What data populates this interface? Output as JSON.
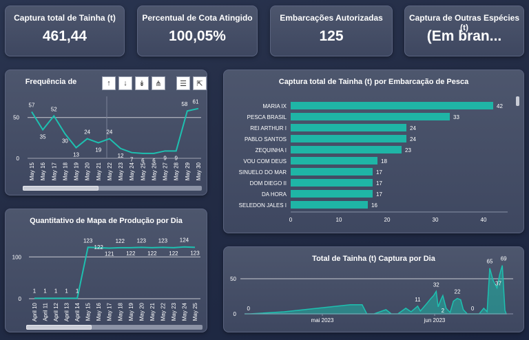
{
  "kpis": [
    {
      "title": "Captura total de Tainha (t)",
      "value": "461,44"
    },
    {
      "title": "Percentual de Cota Atingido",
      "value": "100,05%"
    },
    {
      "title": "Embarcações Autorizadas",
      "value": "125"
    },
    {
      "title": "Captura de Outras Espécies (t)",
      "value": "(Em bran..."
    }
  ],
  "toolbar": {
    "icons": [
      "arrow-up-icon",
      "arrow-down-icon",
      "double-arrow-down-icon",
      "expand-hierarchy-icon",
      "filter-icon",
      "focus-mode-icon"
    ]
  },
  "colors": {
    "accent": "#1fb5a6",
    "line": "#1ec0b0"
  },
  "chart_data": [
    {
      "type": "line",
      "title": "Frequência de",
      "categories": [
        "May 15",
        "May 16",
        "May 17",
        "May 18",
        "May 19",
        "May 20",
        "May 21",
        "May 22",
        "May 23",
        "May 24",
        "May 25",
        "May 26",
        "May 27",
        "May 28",
        "May 29",
        "May 30"
      ],
      "values": [
        57,
        35,
        52,
        30,
        13,
        24,
        19,
        24,
        12,
        7,
        6,
        6,
        9,
        9,
        58,
        61
      ],
      "y_ticks": [
        "0",
        "50"
      ],
      "ylim": [
        0,
        70
      ]
    },
    {
      "type": "bar",
      "orientation": "horizontal",
      "title": "Captura total de Tainha (t) por Embarcação de Pesca",
      "categories": [
        "MARIA IX",
        "PESCA BRASIL",
        "REI ARTHUR I",
        "PABLO SANTOS",
        "ZEQUINHA I",
        "VOU COM DEUS",
        "SINUELO DO MAR",
        "DOM DIEGO II",
        "DA HORA",
        "SELEDON JALES I"
      ],
      "values": [
        42,
        33,
        24,
        24,
        23,
        18,
        17,
        17,
        17,
        16
      ],
      "x_ticks": [
        "0",
        "10",
        "20",
        "30",
        "40"
      ],
      "xlim": [
        0,
        45
      ]
    },
    {
      "type": "line",
      "title": "Quantitativo de Mapa de Produção por Dia",
      "categories": [
        "April 10",
        "April 11",
        "April 12",
        "April 13",
        "April 14",
        "May 15",
        "May 16",
        "May 17",
        "May 18",
        "May 19",
        "May 20",
        "May 21",
        "May 22",
        "May 23",
        "May 24",
        "May 25"
      ],
      "values": [
        1,
        1,
        1,
        1,
        1,
        123,
        122,
        121,
        122,
        122,
        123,
        122,
        123,
        122,
        124,
        123
      ],
      "y_ticks": [
        "0",
        "100"
      ],
      "ylim": [
        0,
        140
      ]
    },
    {
      "type": "area",
      "title": "Total de Tainha (t) Captura por Dia",
      "x_ticks": [
        "mai 2023",
        "jun 2023"
      ],
      "y_ticks": [
        "0",
        "50"
      ],
      "labels": [
        "0",
        "11",
        "32",
        "2",
        "22",
        "0",
        "65",
        "37",
        "69"
      ]
    }
  ]
}
